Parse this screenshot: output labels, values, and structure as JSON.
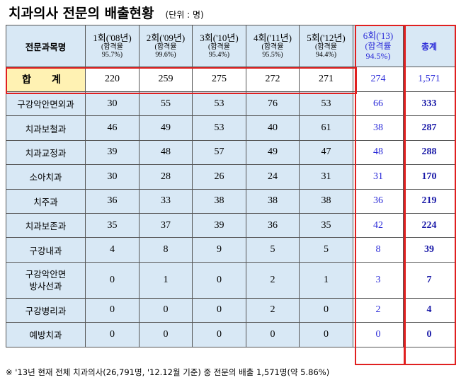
{
  "title": "치과의사 전문의 배출현황",
  "unit": "(단위 : 명)",
  "header": {
    "category": "전문과목명",
    "rounds": [
      {
        "label": "1회('08년)",
        "sub": "(합격율",
        "rate": "95.7%)"
      },
      {
        "label": "2회('09년)",
        "sub": "(합격율",
        "rate": "99.6%)"
      },
      {
        "label": "3회('10년)",
        "sub": "(합격율",
        "rate": "95.4%)"
      },
      {
        "label": "4회('11년)",
        "sub": "(합격율",
        "rate": "95.5%)"
      },
      {
        "label": "5회('12년)",
        "sub": "(합격율",
        "rate": "94.4%)"
      },
      {
        "label": "6회('13)",
        "sub": "(합격률",
        "rate": "94.5%)"
      }
    ],
    "total": "총계"
  },
  "total_row": {
    "label": "합 계",
    "values": [
      "220",
      "259",
      "275",
      "272",
      "271",
      "274",
      "1,571"
    ]
  },
  "rows": [
    {
      "label": "구강악안면외과",
      "values": [
        "30",
        "55",
        "53",
        "76",
        "53",
        "66",
        "333"
      ]
    },
    {
      "label": "치과보철과",
      "values": [
        "46",
        "49",
        "53",
        "40",
        "61",
        "38",
        "287"
      ]
    },
    {
      "label": "치과교정과",
      "values": [
        "39",
        "48",
        "57",
        "49",
        "47",
        "48",
        "288"
      ]
    },
    {
      "label": "소아치과",
      "values": [
        "30",
        "28",
        "26",
        "24",
        "31",
        "31",
        "170"
      ]
    },
    {
      "label": "치주과",
      "values": [
        "36",
        "33",
        "38",
        "38",
        "38",
        "36",
        "219"
      ]
    },
    {
      "label": "치과보존과",
      "values": [
        "35",
        "37",
        "39",
        "36",
        "35",
        "42",
        "224"
      ]
    },
    {
      "label": "구강내과",
      "values": [
        "4",
        "8",
        "9",
        "5",
        "5",
        "8",
        "39"
      ]
    },
    {
      "label": "구강악안면",
      "label2": "방사선과",
      "values": [
        "0",
        "1",
        "0",
        "2",
        "1",
        "3",
        "7"
      ]
    },
    {
      "label": "구강병리과",
      "values": [
        "0",
        "0",
        "0",
        "2",
        "0",
        "2",
        "4"
      ]
    },
    {
      "label": "예방치과",
      "values": [
        "0",
        "0",
        "0",
        "0",
        "0",
        "0",
        "0"
      ]
    }
  ],
  "footnote": "※ '13년 현재 전체 치과의사(26,791명, '12.12월 기준) 중 전문의 배출 1,571명(약 5.86%)",
  "colors": {
    "header_bg": "#d8e8f5",
    "total_bg": "#fff2b3",
    "highlight_border": "#e02020",
    "blue_text": "#2a2ad8"
  }
}
